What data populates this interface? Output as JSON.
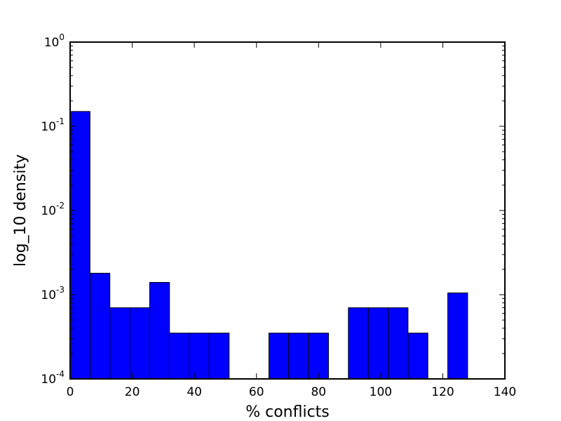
{
  "chart_data": {
    "type": "bar",
    "title": "",
    "xlabel": "% conflicts",
    "ylabel": "log_10 density",
    "x_scale": "linear",
    "y_scale": "log",
    "xlim": [
      0,
      140
    ],
    "ylim": [
      0.0001,
      1
    ],
    "grid": false,
    "bar_color": "#0000ff",
    "bar_edge_color": "#000000",
    "x_ticks": [
      0,
      20,
      40,
      60,
      80,
      100,
      120,
      140
    ],
    "y_ticks": [
      {
        "value": 0.0001,
        "base": "10",
        "exponent": "-4"
      },
      {
        "value": 0.001,
        "base": "10",
        "exponent": "-3"
      },
      {
        "value": 0.01,
        "base": "10",
        "exponent": "-2"
      },
      {
        "value": 0.1,
        "base": "10",
        "exponent": "-1"
      },
      {
        "value": 1,
        "base": "10",
        "exponent": "0"
      }
    ],
    "bins": [
      {
        "x0": 0.0,
        "x1": 6.4,
        "value": 0.15
      },
      {
        "x0": 6.4,
        "x1": 12.8,
        "value": 0.0018
      },
      {
        "x0": 12.8,
        "x1": 19.2,
        "value": 0.0007
      },
      {
        "x0": 19.2,
        "x1": 25.6,
        "value": 0.0007
      },
      {
        "x0": 25.6,
        "x1": 32.0,
        "value": 0.0014
      },
      {
        "x0": 32.0,
        "x1": 38.4,
        "value": 0.00035
      },
      {
        "x0": 38.4,
        "x1": 44.8,
        "value": 0.00035
      },
      {
        "x0": 44.8,
        "x1": 51.2,
        "value": 0.00035
      },
      {
        "x0": 64.0,
        "x1": 70.4,
        "value": 0.00035
      },
      {
        "x0": 70.4,
        "x1": 76.8,
        "value": 0.00035
      },
      {
        "x0": 76.8,
        "x1": 83.2,
        "value": 0.00035
      },
      {
        "x0": 89.6,
        "x1": 96.0,
        "value": 0.0007
      },
      {
        "x0": 96.0,
        "x1": 102.4,
        "value": 0.0007
      },
      {
        "x0": 102.4,
        "x1": 108.8,
        "value": 0.0007
      },
      {
        "x0": 108.8,
        "x1": 115.2,
        "value": 0.00035
      },
      {
        "x0": 121.6,
        "x1": 128.0,
        "value": 0.00105
      }
    ]
  }
}
